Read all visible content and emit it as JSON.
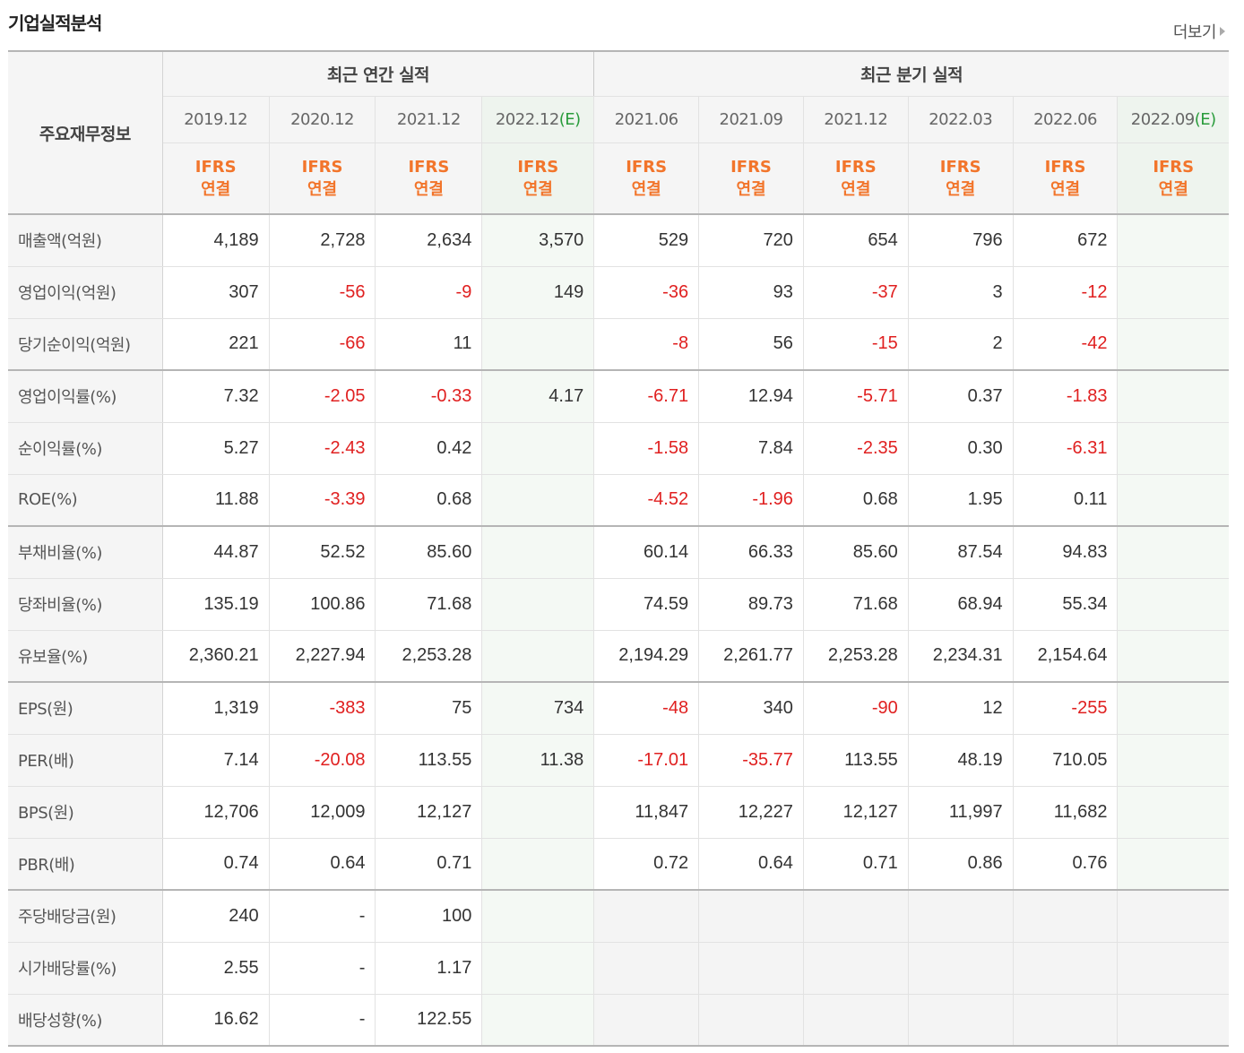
{
  "header": {
    "title": "기업실적분석",
    "more": "더보기"
  },
  "table": {
    "corner_label": "주요재무정보",
    "annual_title": "최근 연간 실적",
    "quarter_title": "최근 분기 실적",
    "annual_periods": [
      {
        "label": "2019.12",
        "est": "",
        "ifrs": "IFRS",
        "basis": "연결"
      },
      {
        "label": "2020.12",
        "est": "",
        "ifrs": "IFRS",
        "basis": "연결"
      },
      {
        "label": "2021.12",
        "est": "",
        "ifrs": "IFRS",
        "basis": "연결"
      },
      {
        "label": "2022.12",
        "est": "(E)",
        "ifrs": "IFRS",
        "basis": "연결"
      }
    ],
    "quarter_periods": [
      {
        "label": "2021.06",
        "est": "",
        "ifrs": "IFRS",
        "basis": "연결"
      },
      {
        "label": "2021.09",
        "est": "",
        "ifrs": "IFRS",
        "basis": "연결"
      },
      {
        "label": "2021.12",
        "est": "",
        "ifrs": "IFRS",
        "basis": "연결"
      },
      {
        "label": "2022.03",
        "est": "",
        "ifrs": "IFRS",
        "basis": "연결"
      },
      {
        "label": "2022.06",
        "est": "",
        "ifrs": "IFRS",
        "basis": "연결"
      },
      {
        "label": "2022.09",
        "est": "(E)",
        "ifrs": "IFRS",
        "basis": "연결"
      }
    ],
    "rows": [
      {
        "label": "매출액(억원)",
        "values": [
          "4,189",
          "2,728",
          "2,634",
          "3,570",
          "529",
          "720",
          "654",
          "796",
          "672",
          ""
        ],
        "group_end": false
      },
      {
        "label": "영업이익(억원)",
        "values": [
          "307",
          "-56",
          "-9",
          "149",
          "-36",
          "93",
          "-37",
          "3",
          "-12",
          ""
        ],
        "group_end": false
      },
      {
        "label": "당기순이익(억원)",
        "values": [
          "221",
          "-66",
          "11",
          "",
          "-8",
          "56",
          "-15",
          "2",
          "-42",
          ""
        ],
        "group_end": true
      },
      {
        "label": "영업이익률(%)",
        "values": [
          "7.32",
          "-2.05",
          "-0.33",
          "4.17",
          "-6.71",
          "12.94",
          "-5.71",
          "0.37",
          "-1.83",
          ""
        ],
        "group_end": false
      },
      {
        "label": "순이익률(%)",
        "values": [
          "5.27",
          "-2.43",
          "0.42",
          "",
          "-1.58",
          "7.84",
          "-2.35",
          "0.30",
          "-6.31",
          ""
        ],
        "group_end": false
      },
      {
        "label": "ROE(%)",
        "values": [
          "11.88",
          "-3.39",
          "0.68",
          "",
          "-4.52",
          "-1.96",
          "0.68",
          "1.95",
          "0.11",
          ""
        ],
        "group_end": true
      },
      {
        "label": "부채비율(%)",
        "values": [
          "44.87",
          "52.52",
          "85.60",
          "",
          "60.14",
          "66.33",
          "85.60",
          "87.54",
          "94.83",
          ""
        ],
        "group_end": false
      },
      {
        "label": "당좌비율(%)",
        "values": [
          "135.19",
          "100.86",
          "71.68",
          "",
          "74.59",
          "89.73",
          "71.68",
          "68.94",
          "55.34",
          ""
        ],
        "group_end": false
      },
      {
        "label": "유보율(%)",
        "values": [
          "2,360.21",
          "2,227.94",
          "2,253.28",
          "",
          "2,194.29",
          "2,261.77",
          "2,253.28",
          "2,234.31",
          "2,154.64",
          ""
        ],
        "group_end": true
      },
      {
        "label": "EPS(원)",
        "values": [
          "1,319",
          "-383",
          "75",
          "734",
          "-48",
          "340",
          "-90",
          "12",
          "-255",
          ""
        ],
        "group_end": false
      },
      {
        "label": "PER(배)",
        "values": [
          "7.14",
          "-20.08",
          "113.55",
          "11.38",
          "-17.01",
          "-35.77",
          "113.55",
          "48.19",
          "710.05",
          ""
        ],
        "group_end": false
      },
      {
        "label": "BPS(원)",
        "values": [
          "12,706",
          "12,009",
          "12,127",
          "",
          "11,847",
          "12,227",
          "12,127",
          "11,997",
          "11,682",
          ""
        ],
        "group_end": false
      },
      {
        "label": "PBR(배)",
        "values": [
          "0.74",
          "0.64",
          "0.71",
          "",
          "0.72",
          "0.64",
          "0.71",
          "0.86",
          "0.76",
          ""
        ],
        "group_end": true
      },
      {
        "label": "주당배당금(원)",
        "values": [
          "240",
          "-",
          "100",
          "",
          "",
          "",
          "",
          "",
          "",
          ""
        ],
        "group_end": false,
        "quarter_blank": true
      },
      {
        "label": "시가배당률(%)",
        "values": [
          "2.55",
          "-",
          "1.17",
          "",
          "",
          "",
          "",
          "",
          "",
          ""
        ],
        "group_end": false,
        "quarter_blank": true
      },
      {
        "label": "배당성향(%)",
        "values": [
          "16.62",
          "-",
          "122.55",
          "",
          "",
          "",
          "",
          "",
          "",
          ""
        ],
        "group_end": false,
        "quarter_blank": true
      }
    ]
  },
  "colors": {
    "negative": "#e02020",
    "ifrs": "#f2752b",
    "estimate_mark": "#2a9c3c"
  }
}
